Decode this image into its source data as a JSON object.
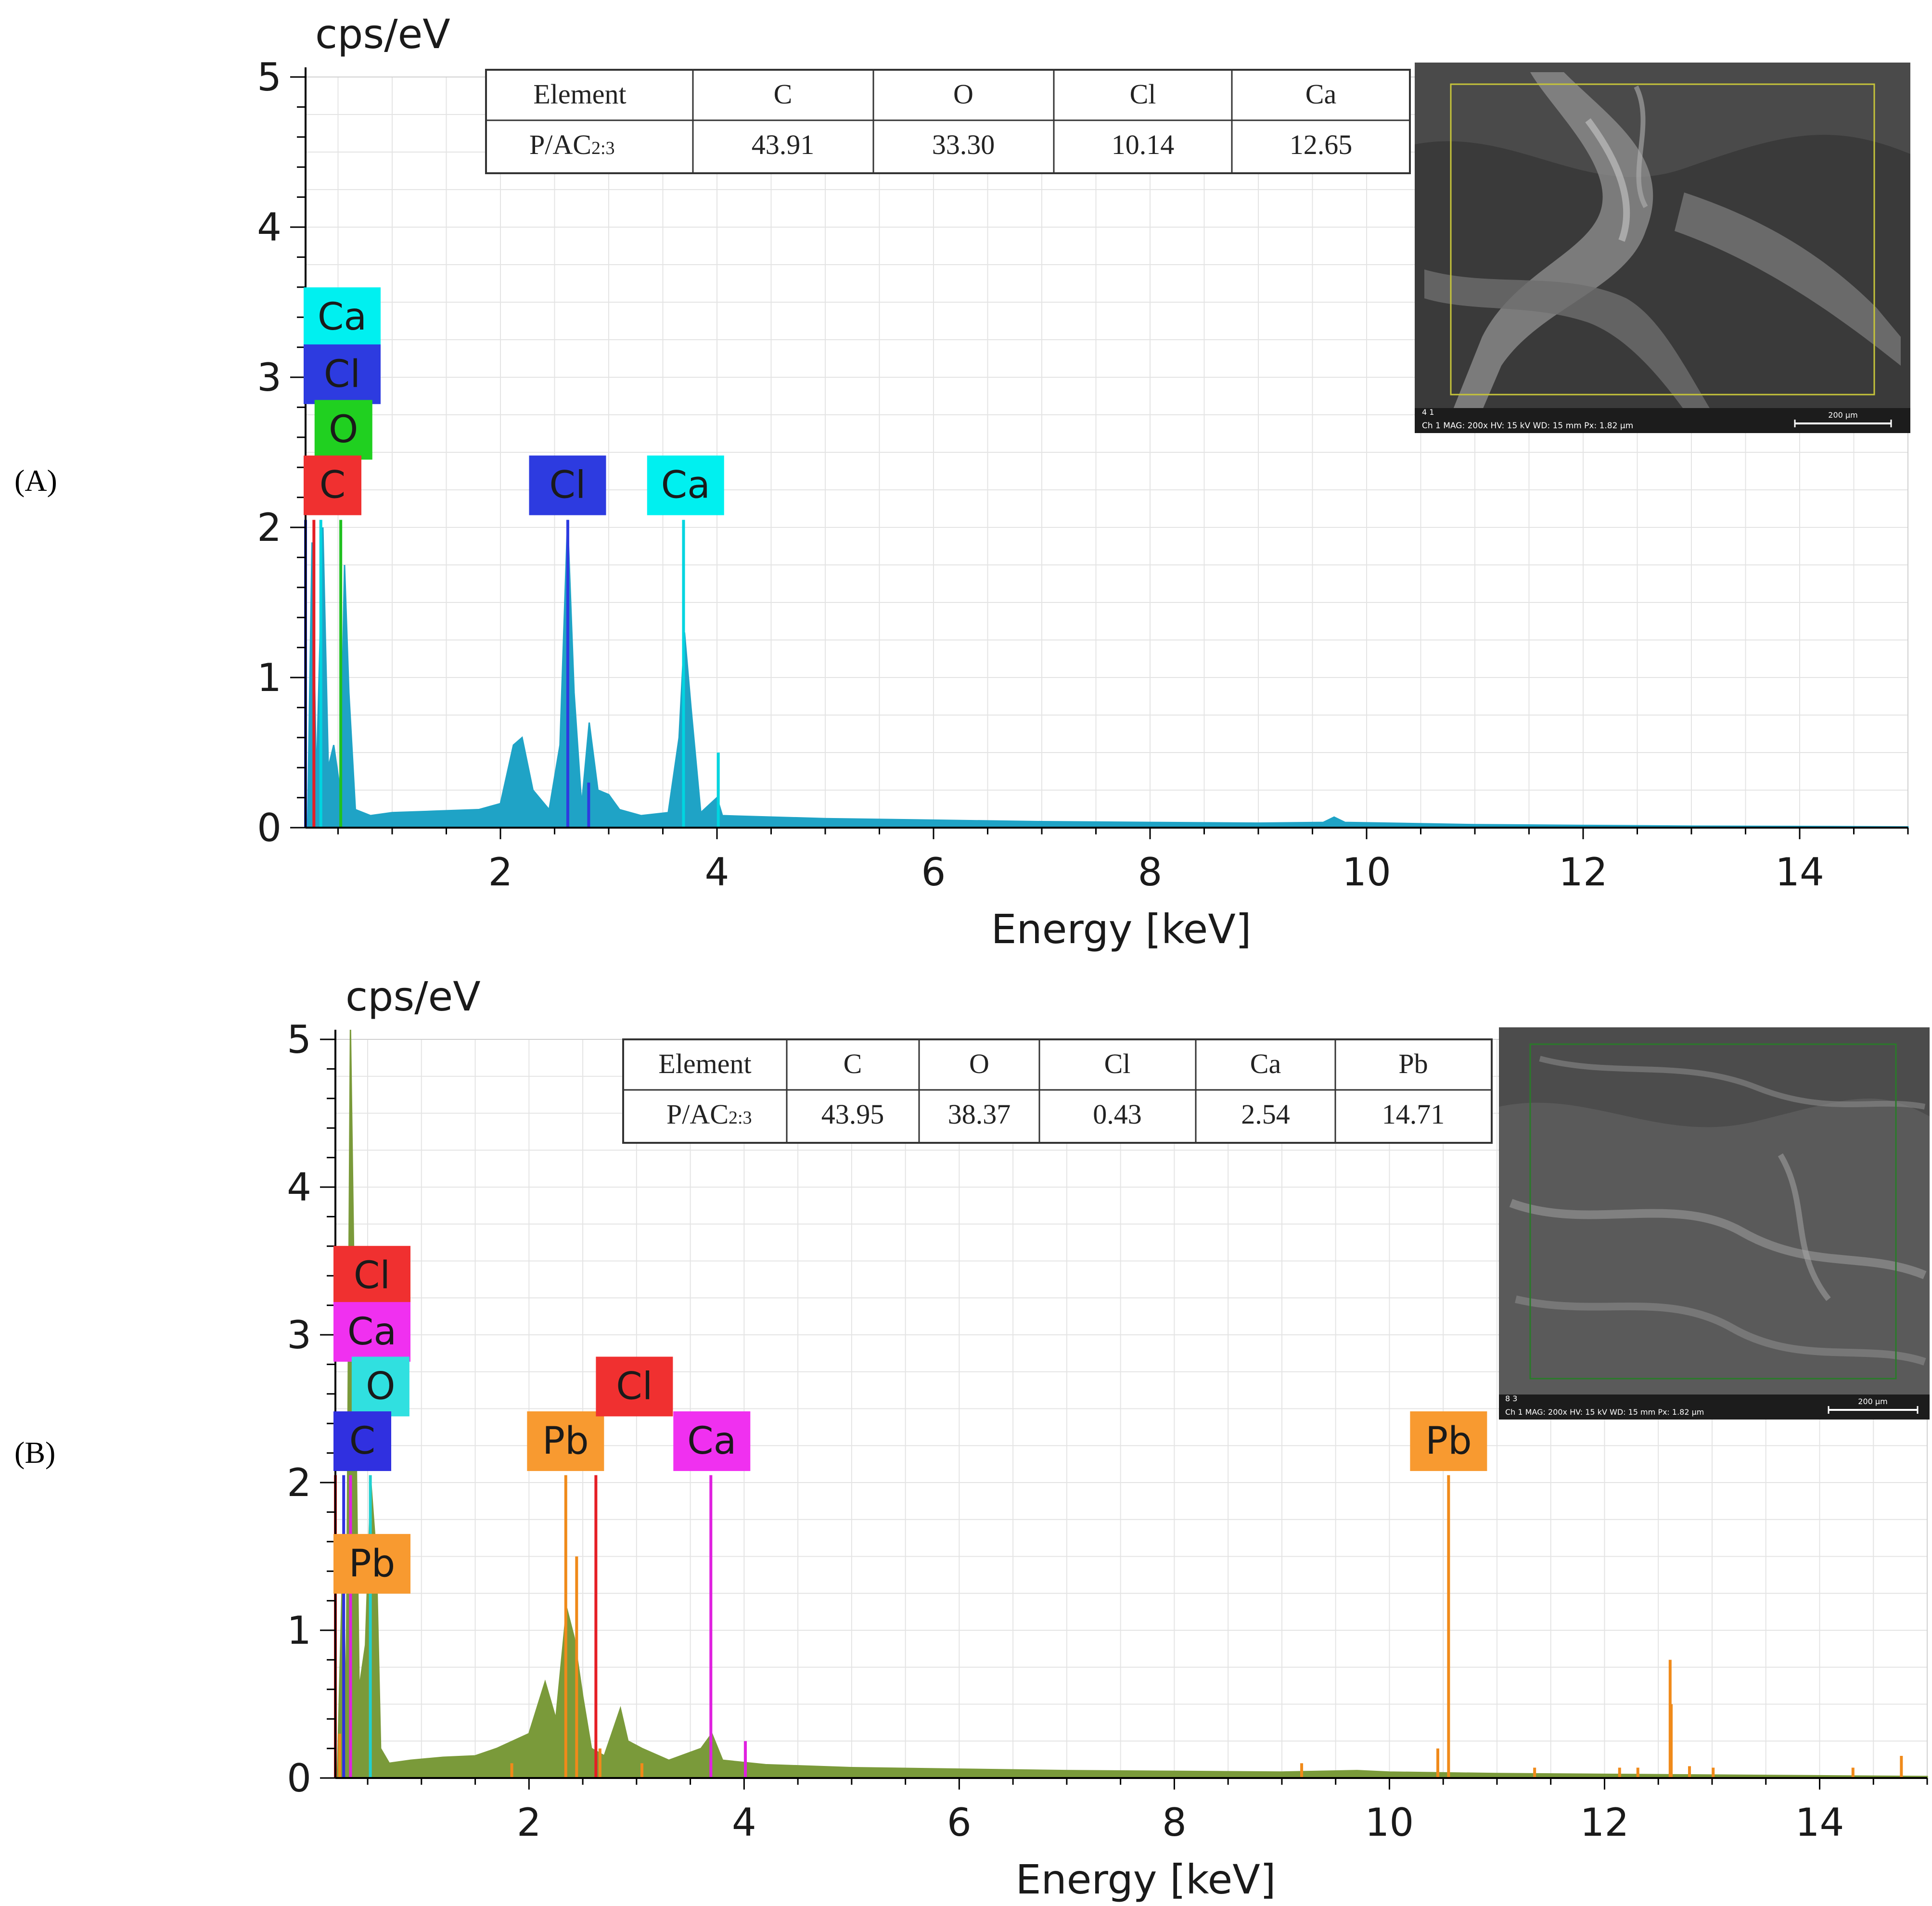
{
  "panels": [
    {
      "label": "(A)",
      "y_unit": "cps/eV",
      "table": {
        "header": [
          "Element",
          "C",
          "O",
          "Cl",
          "Ca"
        ],
        "row_label": "P/AC",
        "row_sub": "2:3",
        "values": [
          "43.91",
          "33.30",
          "10.14",
          "12.65"
        ]
      },
      "sem_caption": "Ch 1   MAG: 200x   HV: 15 kV   WD: 15 mm   Px: 1.82 µm",
      "sem_scale": "200 µm",
      "sem_id": "4 1"
    },
    {
      "label": "(B)",
      "y_unit": "cps/eV",
      "table": {
        "header": [
          "Element",
          "C",
          "O",
          "Cl",
          "Ca",
          "Pb"
        ],
        "row_label": "P/AC",
        "row_sub": "2:3",
        "values": [
          "43.95",
          "38.37",
          "0.43",
          "2.54",
          "14.71"
        ]
      },
      "sem_caption": "Ch 1   MAG: 200x   HV: 15 kV   WD: 15 mm   Px: 1.82 µm",
      "sem_scale": "200 µm",
      "sem_id": "8 3"
    }
  ],
  "chart_data": [
    {
      "type": "area",
      "title": "(A)",
      "xlabel": "Energy [keV]",
      "ylabel": "cps/eV",
      "xlim": [
        0.2,
        15
      ],
      "ylim": [
        0,
        5
      ],
      "xticks": [
        2,
        4,
        6,
        8,
        10,
        12,
        14
      ],
      "yticks": [
        0,
        1,
        2,
        3,
        4,
        5
      ],
      "grid": true,
      "fill_color": "#1fa3c6",
      "spectrum": [
        [
          0.22,
          0.05
        ],
        [
          0.26,
          1.9
        ],
        [
          0.3,
          0.3
        ],
        [
          0.36,
          2.0
        ],
        [
          0.41,
          0.4
        ],
        [
          0.46,
          0.55
        ],
        [
          0.52,
          0.25
        ],
        [
          0.56,
          1.75
        ],
        [
          0.6,
          0.9
        ],
        [
          0.66,
          0.12
        ],
        [
          0.8,
          0.08
        ],
        [
          1.0,
          0.1
        ],
        [
          1.4,
          0.11
        ],
        [
          1.8,
          0.12
        ],
        [
          2.0,
          0.16
        ],
        [
          2.12,
          0.55
        ],
        [
          2.2,
          0.6
        ],
        [
          2.3,
          0.25
        ],
        [
          2.45,
          0.12
        ],
        [
          2.55,
          0.55
        ],
        [
          2.62,
          2.05
        ],
        [
          2.68,
          0.9
        ],
        [
          2.75,
          0.15
        ],
        [
          2.82,
          0.7
        ],
        [
          2.9,
          0.25
        ],
        [
          3.0,
          0.22
        ],
        [
          3.1,
          0.12
        ],
        [
          3.3,
          0.08
        ],
        [
          3.55,
          0.1
        ],
        [
          3.65,
          0.6
        ],
        [
          3.7,
          1.3
        ],
        [
          3.76,
          0.8
        ],
        [
          3.85,
          0.1
        ],
        [
          4.0,
          0.2
        ],
        [
          4.05,
          0.08
        ],
        [
          5,
          0.06
        ],
        [
          6,
          0.05
        ],
        [
          7,
          0.04
        ],
        [
          8,
          0.035
        ],
        [
          9,
          0.03
        ],
        [
          9.6,
          0.035
        ],
        [
          9.7,
          0.07
        ],
        [
          9.8,
          0.035
        ],
        [
          11,
          0.02
        ],
        [
          12,
          0.015
        ],
        [
          13,
          0.01
        ],
        [
          14,
          0.008
        ],
        [
          15,
          0.005
        ]
      ],
      "element_lines": [
        {
          "element": "Ca",
          "color": "#00d5e0",
          "energies": [
            0.341,
            3.691,
            4.012
          ],
          "heights": [
            2.05,
            2.05,
            0.5
          ]
        },
        {
          "element": "Cl",
          "color": "#2d3be0",
          "energies": [
            0.2,
            2.622,
            2.815
          ],
          "heights": [
            2.05,
            2.05,
            0.3
          ]
        },
        {
          "element": "O",
          "color": "#20c020",
          "energies": [
            0.525
          ],
          "heights": [
            2.05
          ]
        },
        {
          "element": "C",
          "color": "#e51e25",
          "energies": [
            0.277
          ],
          "heights": [
            2.05
          ]
        }
      ],
      "annotations": [
        {
          "text": "Ca",
          "x": 0.35,
          "y": 3.4,
          "color": "#00f0f0"
        },
        {
          "text": "Cl",
          "x": 0.3,
          "y": 3.02,
          "color": "#2d3be0"
        },
        {
          "text": "O",
          "x": 0.55,
          "y": 2.65,
          "color": "#20d020"
        },
        {
          "text": "C",
          "x": 0.4,
          "y": 2.28,
          "color": "#f03030"
        },
        {
          "text": "Cl",
          "x": 2.62,
          "y": 2.28,
          "color": "#2d3be0"
        },
        {
          "text": "Ca",
          "x": 3.71,
          "y": 2.28,
          "color": "#00f0f0"
        }
      ]
    },
    {
      "type": "area",
      "title": "(B)",
      "xlabel": "Energy [keV]",
      "ylabel": "cps/eV",
      "xlim": [
        0.2,
        15
      ],
      "ylim": [
        0,
        5
      ],
      "xticks": [
        2,
        4,
        6,
        8,
        10,
        12,
        14
      ],
      "yticks": [
        0,
        1,
        2,
        3,
        4,
        5
      ],
      "grid": true,
      "fill_color": "#7a9a3a",
      "spectrum": [
        [
          0.22,
          0.05
        ],
        [
          0.27,
          1.5
        ],
        [
          0.3,
          0.4
        ],
        [
          0.34,
          5.2
        ],
        [
          0.38,
          3.0
        ],
        [
          0.42,
          0.6
        ],
        [
          0.48,
          0.9
        ],
        [
          0.53,
          2.0
        ],
        [
          0.58,
          1.5
        ],
        [
          0.62,
          0.2
        ],
        [
          0.7,
          0.1
        ],
        [
          0.9,
          0.12
        ],
        [
          1.2,
          0.14
        ],
        [
          1.5,
          0.15
        ],
        [
          1.7,
          0.2
        ],
        [
          1.85,
          0.25
        ],
        [
          2.0,
          0.3
        ],
        [
          2.15,
          0.65
        ],
        [
          2.25,
          0.4
        ],
        [
          2.35,
          1.15
        ],
        [
          2.42,
          0.95
        ],
        [
          2.5,
          0.55
        ],
        [
          2.58,
          0.2
        ],
        [
          2.7,
          0.15
        ],
        [
          2.85,
          0.47
        ],
        [
          2.92,
          0.25
        ],
        [
          3.05,
          0.2
        ],
        [
          3.3,
          0.12
        ],
        [
          3.6,
          0.2
        ],
        [
          3.7,
          0.3
        ],
        [
          3.8,
          0.12
        ],
        [
          4.2,
          0.09
        ],
        [
          5,
          0.07
        ],
        [
          6,
          0.06
        ],
        [
          7,
          0.05
        ],
        [
          8,
          0.045
        ],
        [
          9,
          0.04
        ],
        [
          9.7,
          0.05
        ],
        [
          10,
          0.04
        ],
        [
          11,
          0.03
        ],
        [
          12,
          0.025
        ],
        [
          13,
          0.02
        ],
        [
          14,
          0.015
        ],
        [
          15,
          0.01
        ]
      ],
      "element_lines": [
        {
          "element": "Cl",
          "color": "#e51e25",
          "energies": [
            0.2,
            2.622
          ],
          "heights": [
            2.05,
            2.05
          ]
        },
        {
          "element": "Ca",
          "color": "#e020e0",
          "energies": [
            0.341,
            3.691,
            4.012
          ],
          "heights": [
            2.05,
            2.05,
            0.25
          ]
        },
        {
          "element": "O",
          "color": "#20d0d0",
          "energies": [
            0.525
          ],
          "heights": [
            2.05
          ]
        },
        {
          "element": "C",
          "color": "#3030e0",
          "energies": [
            0.277
          ],
          "heights": [
            2.05
          ]
        },
        {
          "element": "Pb",
          "color": "#f08a1a",
          "energies": [
            0.24,
            1.84,
            2.342,
            2.443,
            2.66,
            3.05,
            9.184,
            10.45,
            10.55,
            11.35,
            12.14,
            12.31,
            12.61,
            12.62,
            12.79,
            13.01,
            14.31,
            14.76
          ],
          "heights": [
            0.3,
            0.1,
            2.05,
            1.5,
            0.2,
            0.1,
            0.1,
            0.2,
            2.05,
            0.07,
            0.07,
            0.07,
            0.8,
            0.5,
            0.08,
            0.07,
            0.07,
            0.15
          ]
        }
      ],
      "annotations": [
        {
          "text": "Cl",
          "x": 0.3,
          "y": 3.4,
          "color": "#f03030"
        },
        {
          "text": "Ca",
          "x": 0.42,
          "y": 3.02,
          "color": "#f030f0"
        },
        {
          "text": "O",
          "x": 0.62,
          "y": 2.65,
          "color": "#30e0e0"
        },
        {
          "text": "C",
          "x": 0.42,
          "y": 2.28,
          "color": "#3030e0"
        },
        {
          "text": "Pb",
          "x": 0.42,
          "y": 1.45,
          "color": "#f89a30"
        },
        {
          "text": "Pb",
          "x": 2.34,
          "y": 2.28,
          "color": "#f89a30"
        },
        {
          "text": "Cl",
          "x": 2.98,
          "y": 2.65,
          "color": "#f03030"
        },
        {
          "text": "Ca",
          "x": 3.7,
          "y": 2.28,
          "color": "#f030f0"
        },
        {
          "text": "Pb",
          "x": 10.55,
          "y": 2.28,
          "color": "#f89a30"
        }
      ]
    }
  ]
}
